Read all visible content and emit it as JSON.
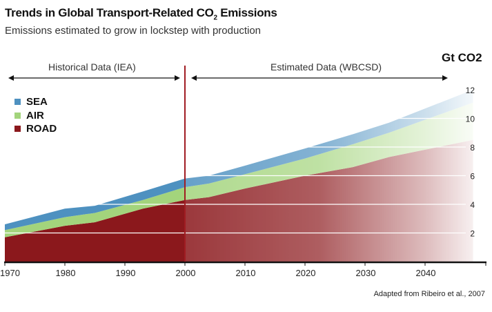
{
  "chart_data": {
    "type": "area",
    "stacked": true,
    "title": "Trends in Global Transport-Related CO2 Emissions",
    "title_parts": {
      "before": "Trends in Global Transport-Related CO",
      "sub": "2",
      "after": " Emissions"
    },
    "subtitle": "Emissions estimated to grow in lockstep with production",
    "ylabel": "Gt CO2",
    "ylabel_parts": {
      "main": "Gt CO",
      "sub": "2"
    },
    "xlabel": "",
    "x": [
      1970,
      1980,
      1985,
      1993,
      2000,
      2004,
      2010,
      2020,
      2028,
      2034,
      2048
    ],
    "series": [
      {
        "name": "ROAD",
        "color": "#8b181c",
        "values": [
          1.7,
          2.5,
          2.75,
          3.7,
          4.3,
          4.5,
          5.1,
          6.0,
          6.6,
          7.3,
          8.5
        ]
      },
      {
        "name": "AIR",
        "color": "#a3d47c",
        "values": [
          0.5,
          0.6,
          0.65,
          0.6,
          0.9,
          0.95,
          1.0,
          1.2,
          1.6,
          1.7,
          2.6
        ]
      },
      {
        "name": "SEA",
        "color": "#4e91c0",
        "values": [
          0.4,
          0.6,
          0.5,
          0.6,
          0.6,
          0.55,
          0.6,
          0.7,
          0.7,
          0.7,
          0.9
        ]
      }
    ],
    "xlim": [
      1970,
      2048
    ],
    "ylim": [
      0,
      12
    ],
    "x_ticks": [
      1970,
      1980,
      1990,
      2000,
      2010,
      2020,
      2030,
      2040
    ],
    "y_ticks": [
      2,
      4,
      6,
      8,
      10,
      12
    ],
    "grid": "horizontal",
    "legend_position": "left",
    "divider_year": 2000,
    "periods": {
      "historical": "Historical Data (IEA)",
      "estimated": "Estimated Data (WBCSD)"
    },
    "source": "Adapted from Ribeiro et al., 2007"
  }
}
